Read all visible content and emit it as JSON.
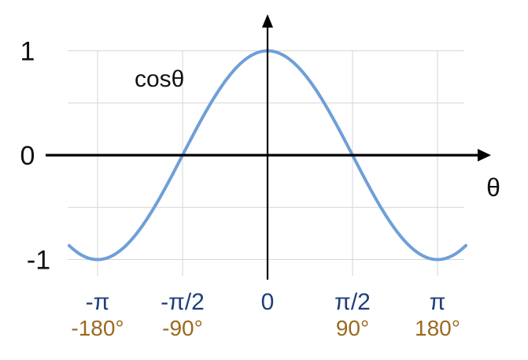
{
  "chart_data": {
    "type": "line",
    "function": "cosθ",
    "series": [
      {
        "name": "cosθ",
        "x_degrees": [
          -210,
          -180,
          -150,
          -120,
          -90,
          -60,
          -30,
          0,
          30,
          60,
          90,
          120,
          150,
          180,
          210
        ],
        "y": [
          -0.87,
          -1,
          -0.87,
          -0.5,
          0,
          0.5,
          0.87,
          1,
          0.87,
          0.5,
          0,
          -0.5,
          -0.87,
          -1,
          -0.87
        ]
      }
    ],
    "xlabel": "θ",
    "ylabel": "",
    "xlim_degrees": [
      -210,
      210
    ],
    "ylim": [
      -1,
      1
    ],
    "y_ticks": [
      {
        "value": 1,
        "label": "1"
      },
      {
        "value": 0,
        "label": "0"
      },
      {
        "value": -1,
        "label": "-1"
      }
    ],
    "x_ticks": [
      {
        "degrees": -180,
        "radian_label": "-π",
        "degree_label": "-180°"
      },
      {
        "degrees": -90,
        "radian_label": "-π/2",
        "degree_label": "-90°"
      },
      {
        "degrees": 0,
        "radian_label": "0",
        "degree_label": ""
      },
      {
        "degrees": 90,
        "radian_label": "π/2",
        "degree_label": "90°"
      },
      {
        "degrees": 180,
        "radian_label": "π",
        "degree_label": "180°"
      }
    ],
    "grid": true,
    "colors": {
      "curve": "#6f9fd8",
      "axis": "#000000",
      "grid": "#d6d6d6",
      "radian_labels": "#1f3f7a",
      "degree_labels": "#9a6a1f",
      "text": "#111111"
    }
  }
}
